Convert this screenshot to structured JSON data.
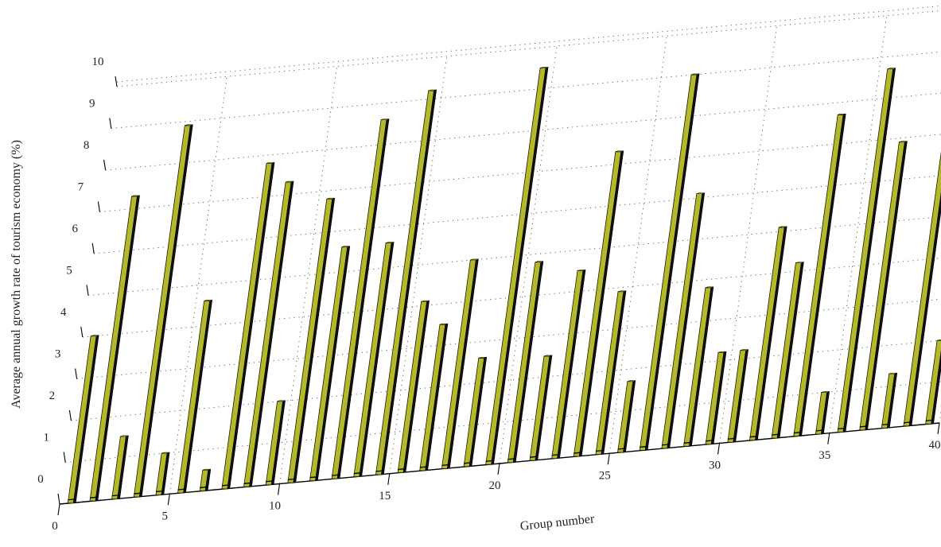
{
  "chart_data": {
    "type": "bar",
    "title": "",
    "xlabel": "Group number",
    "ylabel": "Average annual growth rate of tourism economy (%)",
    "xlim": [
      0,
      40
    ],
    "ylim": [
      0,
      10
    ],
    "x_ticks": [
      "0",
      "5",
      "10",
      "15",
      "20",
      "25",
      "30",
      "35",
      "40"
    ],
    "y_ticks": [
      "0",
      "1",
      "2",
      "3",
      "4",
      "5",
      "6",
      "7",
      "8",
      "9",
      "10"
    ],
    "grid": true,
    "bar_color": "#b4b92c",
    "categories": [
      1,
      2,
      3,
      4,
      5,
      6,
      7,
      8,
      9,
      10,
      11,
      12,
      13,
      14,
      15,
      16,
      17,
      18,
      19,
      20,
      21,
      22,
      23,
      24,
      25,
      26,
      27,
      28,
      29,
      30,
      31,
      32,
      33,
      34,
      35,
      36,
      37,
      38,
      39,
      40
    ],
    "values": [
      4.0,
      7.3,
      1.5,
      8.9,
      1.0,
      4.6,
      0.5,
      7.8,
      7.3,
      2.0,
      6.8,
      5.6,
      8.6,
      5.6,
      9.2,
      4.1,
      3.5,
      5.0,
      2.6,
      9.5,
      4.8,
      2.5,
      4.5,
      7.3,
      3.9,
      1.7,
      9.0,
      6.1,
      3.8,
      2.2,
      2.2,
      5.1,
      4.2,
      7.7,
      1.0,
      8.7,
      6.9,
      1.3,
      8.9,
      2.0
    ]
  }
}
